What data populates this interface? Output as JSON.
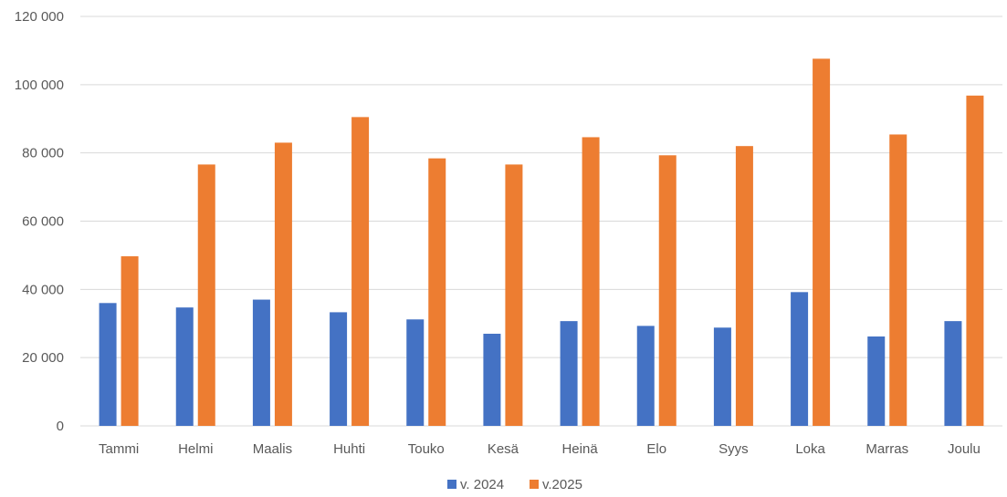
{
  "chart_data": {
    "type": "bar",
    "categories": [
      "Tammi",
      "Helmi",
      "Maalis",
      "Huhti",
      "Touko",
      "Kesä",
      "Heinä",
      "Elo",
      "Syys",
      "Loka",
      "Marras",
      "Joulu"
    ],
    "series": [
      {
        "name": "v. 2024",
        "color": "#4472c4",
        "values": [
          36000,
          34700,
          37000,
          33300,
          31200,
          27000,
          30700,
          29300,
          28800,
          39200,
          26200,
          30700
        ]
      },
      {
        "name": "v.2025",
        "color": "#ed7d31",
        "values": [
          49700,
          76600,
          83000,
          90500,
          78400,
          76600,
          84600,
          79300,
          82000,
          107600,
          85400,
          96800
        ]
      }
    ],
    "ylim": [
      0,
      120000
    ],
    "yticks": [
      0,
      20000,
      40000,
      60000,
      80000,
      100000,
      120000
    ],
    "ytick_labels": [
      "0",
      "20 000",
      "40 000",
      "60 000",
      "80 000",
      "100 000",
      "120 000"
    ],
    "grid": true,
    "legend": "bottom-center"
  }
}
